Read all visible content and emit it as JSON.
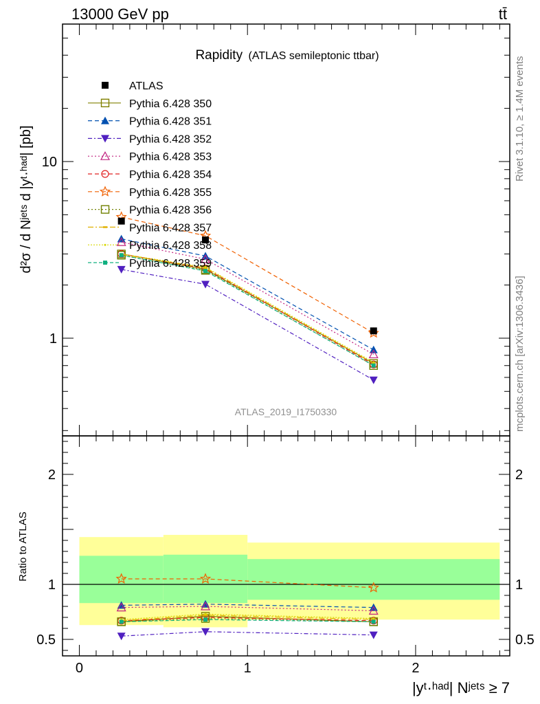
{
  "header": {
    "left": "13000 GeV pp",
    "right": "tt̄"
  },
  "side_text": {
    "rivet": "Rivet 3.1.10, ≥ 1.4M events",
    "mcplots": "mcplots.cern.ch [arXiv:1306.3436]"
  },
  "plot": {
    "title_main": "Rapidity",
    "title_sub": "(ATLAS semileptonic ttbar)",
    "watermark": "ATLAS_2019_I1750330",
    "ylabel_main": "d²σ / d Nʲᵉᵗˢ d |yᵗ·ʰᵃᵈ| [pb]",
    "ylabel_ratio": "Ratio to ATLAS",
    "xlabel": "|yᵗ·ʰᵃᵈ| Nʲᵉᵗˢ ≥ 7"
  },
  "chart_data": {
    "type": "scatter",
    "title": "Rapidity (ATLAS semileptonic ttbar)",
    "xlabel": "|y^{t,had}| N^{jets} ≥ 7",
    "ylabel": "d²σ / d N^{jets} d |y^{t,had}| [pb]",
    "xlim": [
      -0.1,
      2.56
    ],
    "x_ticks": [
      "0",
      "1",
      "2"
    ],
    "main": {
      "yscale": "log",
      "ylim": [
        0.28,
        60
      ],
      "y_ticks": [
        "1",
        "10"
      ]
    },
    "ratio": {
      "ylabel": "Ratio to ATLAS",
      "ylim": [
        0.35,
        2.35
      ],
      "y_ticks": [
        "0.5",
        "1",
        "2"
      ],
      "bands": [
        {
          "xlow": 0.0,
          "xhigh": 0.5,
          "inner": [
            0.83,
            1.26
          ],
          "outer": [
            0.63,
            1.43
          ]
        },
        {
          "xlow": 0.5,
          "xhigh": 1.0,
          "inner": [
            0.83,
            1.27
          ],
          "outer": [
            0.61,
            1.45
          ]
        },
        {
          "xlow": 1.0,
          "xhigh": 2.5,
          "inner": [
            0.86,
            1.23
          ],
          "outer": [
            0.68,
            1.38
          ]
        }
      ],
      "band_colors": {
        "inner": "#99ff99",
        "outer": "#ffff99"
      }
    },
    "x": [
      0.25,
      0.75,
      1.75
    ],
    "data": {
      "name": "ATLAS",
      "values": [
        4.6,
        3.6,
        1.1
      ],
      "color": "#000000"
    },
    "series": [
      {
        "name": "Pythia 6.428 350",
        "values": [
          3.0,
          2.45,
          0.72
        ],
        "ratio": [
          0.66,
          0.71,
          0.66
        ],
        "color": "#808000",
        "dash": "",
        "marker": "open-square",
        "legend_marker_size": 11
      },
      {
        "name": "Pythia 6.428 351",
        "values": [
          3.65,
          2.92,
          0.86
        ],
        "ratio": [
          0.81,
          0.82,
          0.79
        ],
        "color": "#0050b0",
        "dash": "6,4",
        "marker": "filled-triangle-up"
      },
      {
        "name": "Pythia 6.428 352",
        "values": [
          2.45,
          2.02,
          0.58
        ],
        "ratio": [
          0.53,
          0.57,
          0.54
        ],
        "color": "#5020c0",
        "dash": "6,3,2,3",
        "marker": "filled-triangle-down"
      },
      {
        "name": "Pythia 6.428 353",
        "values": [
          3.5,
          2.8,
          0.81
        ],
        "ratio": [
          0.79,
          0.8,
          0.76
        ],
        "color": "#c0207f",
        "dash": "2,3",
        "marker": "open-triangle-up"
      },
      {
        "name": "Pythia 6.428 354",
        "values": [
          3.0,
          2.48,
          0.71
        ],
        "ratio": [
          0.67,
          0.7,
          0.67
        ],
        "color": "#e02020",
        "dash": "6,4",
        "marker": "open-circle"
      },
      {
        "name": "Pythia 6.428 355",
        "values": [
          4.85,
          3.8,
          1.07
        ],
        "ratio": [
          1.05,
          1.05,
          0.97
        ],
        "color": "#f06000",
        "dash": "6,4",
        "marker": "open-star"
      },
      {
        "name": "Pythia 6.428 356",
        "values": [
          2.95,
          2.42,
          0.7
        ],
        "ratio": [
          0.66,
          0.69,
          0.66
        ],
        "color": "#708000",
        "dash": "2,3",
        "marker": "open-square",
        "legend_marker_size": 11
      },
      {
        "name": "Pythia 6.428 357",
        "values": [
          2.98,
          2.5,
          0.72
        ],
        "ratio": [
          0.67,
          0.72,
          0.68
        ],
        "color": "#e0b000",
        "dash": "8,3,2,3",
        "marker": "small-dash"
      },
      {
        "name": "Pythia 6.428 358",
        "values": [
          3.0,
          2.52,
          0.73
        ],
        "ratio": [
          0.68,
          0.73,
          0.69
        ],
        "color": "#d8d800",
        "dash": "2,2",
        "marker": "small-dot"
      },
      {
        "name": "Pythia 6.428 359",
        "values": [
          2.95,
          2.4,
          0.7
        ],
        "ratio": [
          0.66,
          0.68,
          0.66
        ],
        "color": "#10b080",
        "dash": "5,3",
        "marker": "filled-square-small"
      }
    ]
  }
}
